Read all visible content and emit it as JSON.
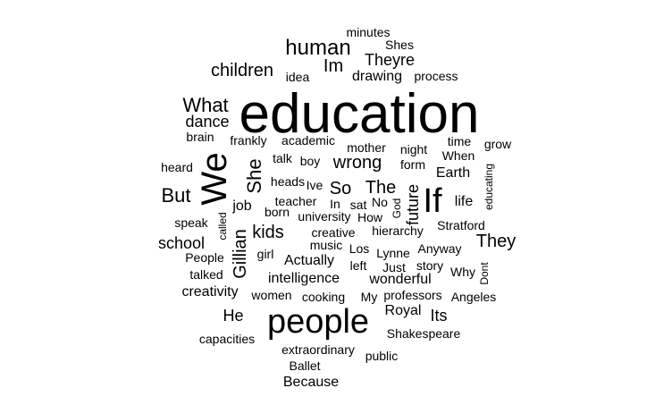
{
  "word_cloud": {
    "text_color": "#000000",
    "background": "#ffffff",
    "words": [
      {
        "text": "education",
        "vertical": false
      },
      {
        "text": "people",
        "vertical": false
      },
      {
        "text": "We",
        "vertical": true
      },
      {
        "text": "If",
        "vertical": false
      },
      {
        "text": "human",
        "vertical": false
      },
      {
        "text": "Im",
        "vertical": false
      },
      {
        "text": "Theyre",
        "vertical": false
      },
      {
        "text": "children",
        "vertical": false
      },
      {
        "text": "drawing",
        "vertical": false
      },
      {
        "text": "process",
        "vertical": false
      },
      {
        "text": "idea",
        "vertical": false
      },
      {
        "text": "minutes",
        "vertical": false
      },
      {
        "text": "Shes",
        "vertical": false
      },
      {
        "text": "What",
        "vertical": false
      },
      {
        "text": "dance",
        "vertical": false
      },
      {
        "text": "brain",
        "vertical": false
      },
      {
        "text": "frankly",
        "vertical": false
      },
      {
        "text": "academic",
        "vertical": false
      },
      {
        "text": "mother",
        "vertical": false
      },
      {
        "text": "night",
        "vertical": false
      },
      {
        "text": "time",
        "vertical": false
      },
      {
        "text": "grow",
        "vertical": false
      },
      {
        "text": "When",
        "vertical": false
      },
      {
        "text": "educating",
        "vertical": true
      },
      {
        "text": "heard",
        "vertical": false
      },
      {
        "text": "She",
        "vertical": true
      },
      {
        "text": "talk",
        "vertical": false
      },
      {
        "text": "boy",
        "vertical": false
      },
      {
        "text": "wrong",
        "vertical": false
      },
      {
        "text": "form",
        "vertical": false
      },
      {
        "text": "Earth",
        "vertical": false
      },
      {
        "text": "But",
        "vertical": false
      },
      {
        "text": "heads",
        "vertical": false
      },
      {
        "text": "Ive",
        "vertical": false
      },
      {
        "text": "So",
        "vertical": false
      },
      {
        "text": "The",
        "vertical": false
      },
      {
        "text": "future",
        "vertical": true
      },
      {
        "text": "God",
        "vertical": true
      },
      {
        "text": "life",
        "vertical": false
      },
      {
        "text": "job",
        "vertical": false
      },
      {
        "text": "teacher",
        "vertical": false
      },
      {
        "text": "In",
        "vertical": false
      },
      {
        "text": "sat",
        "vertical": false
      },
      {
        "text": "No",
        "vertical": false
      },
      {
        "text": "speak",
        "vertical": false
      },
      {
        "text": "born",
        "vertical": false
      },
      {
        "text": "university",
        "vertical": false
      },
      {
        "text": "How",
        "vertical": false
      },
      {
        "text": "kids",
        "vertical": false
      },
      {
        "text": "called",
        "vertical": true
      },
      {
        "text": "Gillian",
        "vertical": true
      },
      {
        "text": "creative",
        "vertical": false
      },
      {
        "text": "hierarchy",
        "vertical": false
      },
      {
        "text": "Stratford",
        "vertical": false
      },
      {
        "text": "They",
        "vertical": false
      },
      {
        "text": "school",
        "vertical": false
      },
      {
        "text": "girl",
        "vertical": false
      },
      {
        "text": "music",
        "vertical": false
      },
      {
        "text": "Los",
        "vertical": false
      },
      {
        "text": "Lynne",
        "vertical": false
      },
      {
        "text": "Anyway",
        "vertical": false
      },
      {
        "text": "People",
        "vertical": false
      },
      {
        "text": "Actually",
        "vertical": false
      },
      {
        "text": "left",
        "vertical": false
      },
      {
        "text": "Just",
        "vertical": false
      },
      {
        "text": "story",
        "vertical": false
      },
      {
        "text": "Why",
        "vertical": false
      },
      {
        "text": "Dont",
        "vertical": true
      },
      {
        "text": "talked",
        "vertical": false
      },
      {
        "text": "intelligence",
        "vertical": false
      },
      {
        "text": "wonderful",
        "vertical": false
      },
      {
        "text": "creativity",
        "vertical": false
      },
      {
        "text": "women",
        "vertical": false
      },
      {
        "text": "cooking",
        "vertical": false
      },
      {
        "text": "My",
        "vertical": false
      },
      {
        "text": "professors",
        "vertical": false
      },
      {
        "text": "Angeles",
        "vertical": false
      },
      {
        "text": "He",
        "vertical": false
      },
      {
        "text": "Royal",
        "vertical": false
      },
      {
        "text": "Its",
        "vertical": false
      },
      {
        "text": "capacities",
        "vertical": false
      },
      {
        "text": "Shakespeare",
        "vertical": false
      },
      {
        "text": "extraordinary",
        "vertical": false
      },
      {
        "text": "public",
        "vertical": false
      },
      {
        "text": "Ballet",
        "vertical": false
      },
      {
        "text": "Because",
        "vertical": false
      }
    ]
  }
}
